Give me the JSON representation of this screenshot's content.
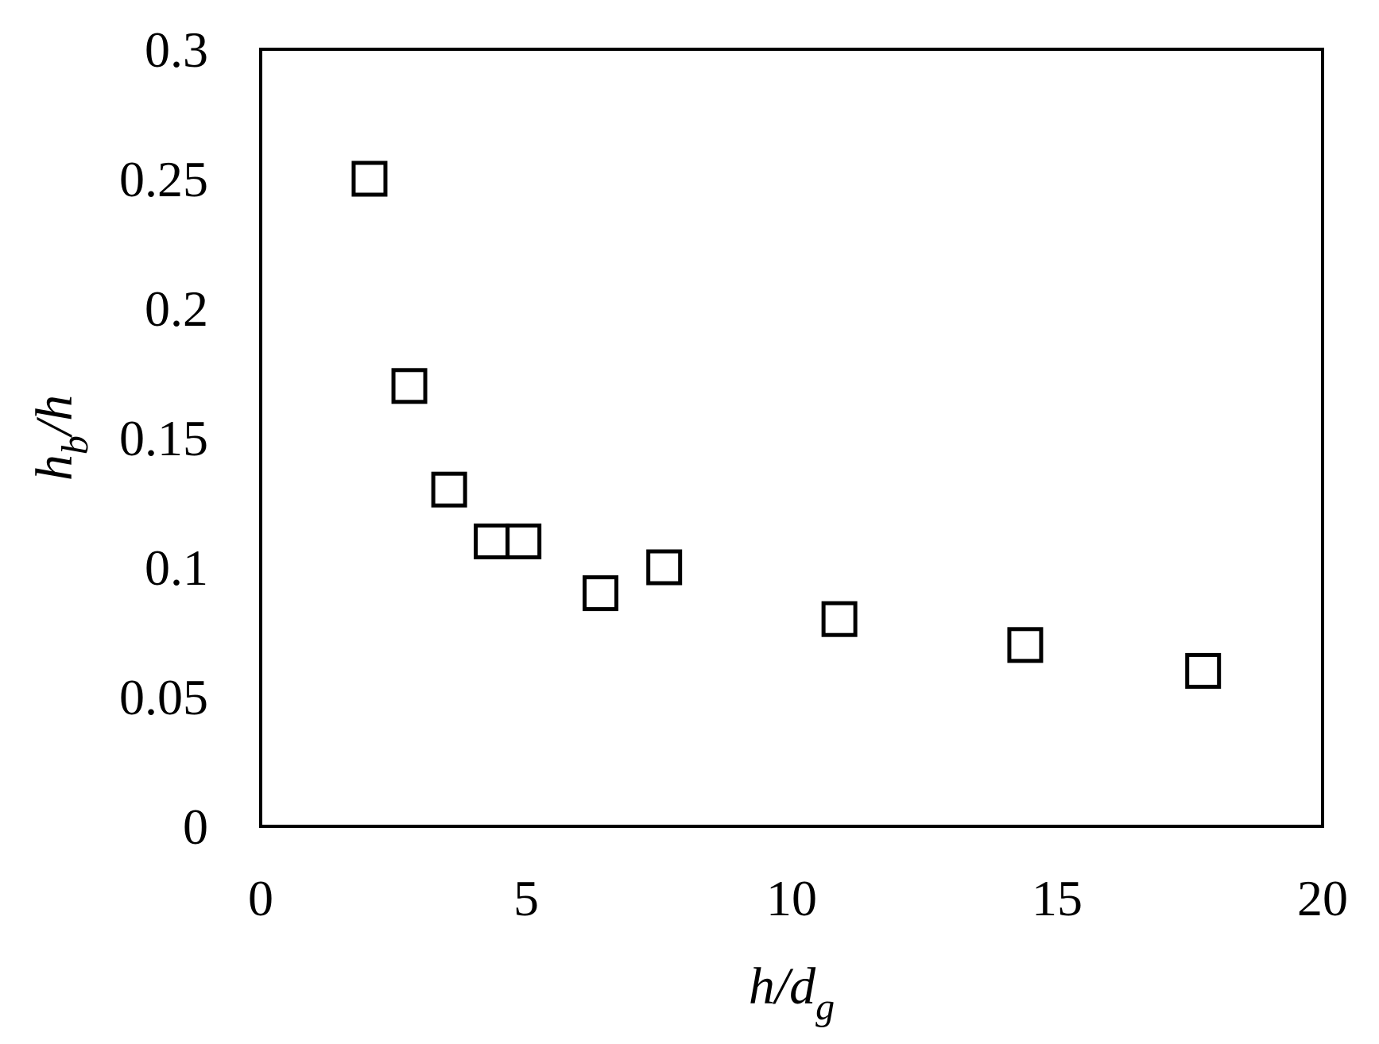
{
  "chart_data": {
    "type": "scatter",
    "title": "",
    "xlabel": "h/dg",
    "xlabel_parts": {
      "pre": "h/d",
      "sub": "g"
    },
    "ylabel": "hb/h",
    "ylabel_parts": {
      "pre": "h",
      "sub": "b",
      "post": "/h"
    },
    "xlim": [
      0,
      20
    ],
    "ylim": [
      0,
      0.3
    ],
    "xticks": [
      0,
      5,
      10,
      15,
      20
    ],
    "xtick_labels": [
      "0",
      "5",
      "10",
      "15",
      "20"
    ],
    "yticks": [
      0,
      0.05,
      0.1,
      0.15,
      0.2,
      0.25,
      0.3
    ],
    "ytick_labels": [
      "0",
      "0.05",
      "0.1",
      "0.15",
      "0.2",
      "0.25",
      "0.3"
    ],
    "grid": false,
    "legend": "none",
    "marker": "open-square",
    "marker_color": "#000000",
    "series": [
      {
        "x": [
          2.05,
          2.8,
          3.55,
          4.35,
          4.95,
          6.4,
          7.6,
          10.9,
          14.4,
          17.75
        ],
        "y": [
          0.25,
          0.17,
          0.13,
          0.11,
          0.11,
          0.09,
          0.1,
          0.08,
          0.07,
          0.06
        ]
      }
    ]
  }
}
